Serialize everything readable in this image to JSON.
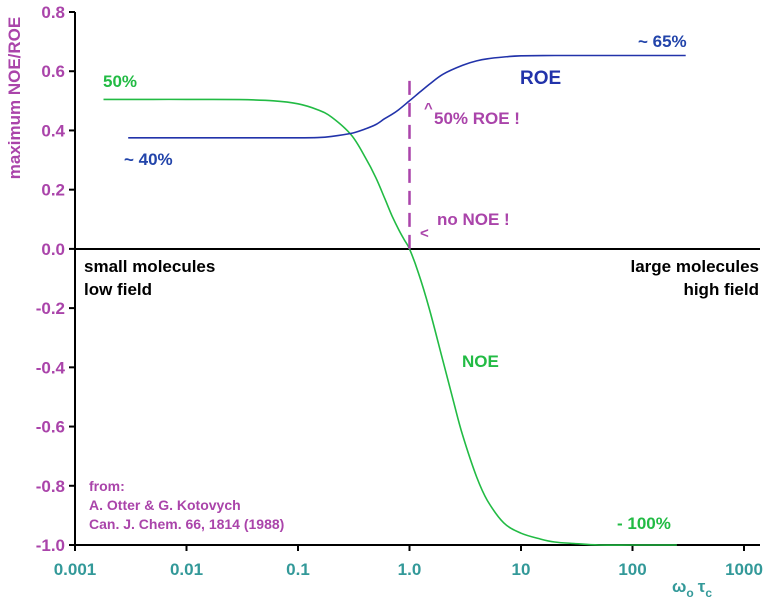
{
  "chart_data": {
    "type": "line",
    "title": "",
    "ylabel": "maximum NOE/ROE",
    "xlabel": "ω₀τc",
    "xlabel_main": "ω",
    "xlabel_sub1": "o",
    "xlabel_tau": "τ",
    "xlabel_sub2": "c",
    "xscale": "log",
    "xlim": [
      0.001,
      1000
    ],
    "ylim": [
      -1.0,
      0.8
    ],
    "x_ticks": [
      {
        "value": 0.001,
        "label": "0.001"
      },
      {
        "value": 0.01,
        "label": "0.01"
      },
      {
        "value": 0.1,
        "label": "0.1"
      },
      {
        "value": 1,
        "label": "1.0"
      },
      {
        "value": 10,
        "label": "10"
      },
      {
        "value": 100,
        "label": "100"
      },
      {
        "value": 1000,
        "label": "1000"
      }
    ],
    "y_ticks": [
      {
        "value": 0.8,
        "label": "0.8"
      },
      {
        "value": 0.6,
        "label": "0.6"
      },
      {
        "value": 0.4,
        "label": "0.4"
      },
      {
        "value": 0.2,
        "label": "0.2"
      },
      {
        "value": 0.0,
        "label": "0.0"
      },
      {
        "value": -0.2,
        "label": "-0.2"
      },
      {
        "value": -0.4,
        "label": "-0.4"
      },
      {
        "value": -0.6,
        "label": "-0.6"
      },
      {
        "value": -0.8,
        "label": "-0.8"
      },
      {
        "value": -1.0,
        "label": "-1.0"
      }
    ],
    "series": [
      {
        "name": "NOE",
        "color": "#22bb44",
        "x": [
          0.0018,
          0.005,
          0.01,
          0.03,
          0.06,
          0.1,
          0.15,
          0.2,
          0.3,
          0.4,
          0.5,
          0.6,
          0.7,
          0.8,
          0.9,
          1.0,
          1.2,
          1.5,
          2,
          2.5,
          3,
          4,
          5,
          7,
          10,
          15,
          20,
          30,
          50,
          100,
          200,
          250
        ],
        "values": [
          0.505,
          0.505,
          0.505,
          0.504,
          0.5,
          0.49,
          0.47,
          0.445,
          0.385,
          0.31,
          0.24,
          0.17,
          0.11,
          0.065,
          0.03,
          0.0,
          -0.08,
          -0.2,
          -0.38,
          -0.52,
          -0.63,
          -0.77,
          -0.85,
          -0.925,
          -0.96,
          -0.98,
          -0.99,
          -0.995,
          -1.0,
          -1.0,
          -1.0,
          -1.0
        ]
      },
      {
        "name": "ROE",
        "color": "#2233aa",
        "x": [
          0.003,
          0.01,
          0.03,
          0.1,
          0.15,
          0.2,
          0.3,
          0.4,
          0.5,
          0.6,
          0.7,
          0.8,
          1.0,
          1.2,
          1.5,
          2,
          3,
          4,
          5,
          7,
          10,
          20,
          50,
          100,
          300
        ],
        "values": [
          0.375,
          0.375,
          0.375,
          0.375,
          0.376,
          0.38,
          0.39,
          0.405,
          0.42,
          0.44,
          0.455,
          0.47,
          0.5,
          0.525,
          0.555,
          0.59,
          0.62,
          0.635,
          0.642,
          0.648,
          0.652,
          0.653,
          0.653,
          0.653,
          0.653
        ]
      }
    ],
    "marker_line": {
      "x": 1.0,
      "y_from": 0.0,
      "y_to": 0.57,
      "style": "dashed",
      "color": "#aa44aa"
    },
    "annotations": {
      "noe_start": "50%",
      "roe_start": "~ 40%",
      "roe_end": "~ 65%",
      "roe_label": "ROE",
      "noe_label": "NOE",
      "noe_end": "- 100%",
      "half_roe": "50% ROE !",
      "no_noe": "no NOE !",
      "arrow_up": "^",
      "arrow_left": "<",
      "small_mol_1": "small molecules",
      "small_mol_2": "low field",
      "large_mol_1": "large molecules",
      "large_mol_2": "high field",
      "source_1": "from:",
      "source_2": "A. Otter & G. Kotovych",
      "source_3": "Can. J. Chem. 66, 1814 (1988)"
    },
    "colors": {
      "axis": "#000000",
      "tick_label_y": "#aa44aa",
      "tick_label_x": "#339999",
      "noe": "#22bb44",
      "roe": "#2233aa",
      "magenta": "#aa44aa",
      "green": "#22bb44",
      "blue": "#2244aa"
    }
  }
}
